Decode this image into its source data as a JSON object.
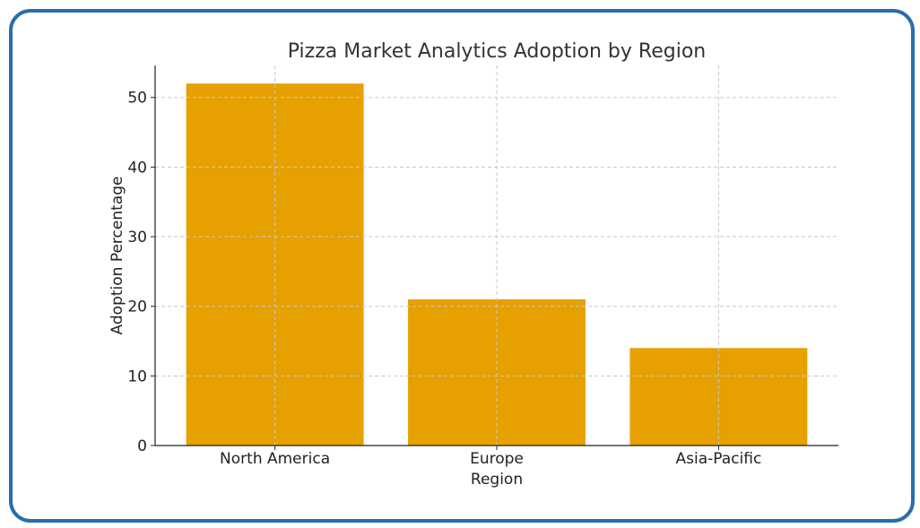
{
  "chart_data": {
    "type": "bar",
    "title": "Pizza Market Analytics Adoption by Region",
    "xlabel": "Region",
    "ylabel": "Adoption Percentage",
    "categories": [
      "North America",
      "Europe",
      "Asia-Pacific"
    ],
    "values": [
      52,
      21,
      14
    ],
    "ylim": [
      0,
      54.6
    ],
    "yticks": [
      0,
      10,
      20,
      30,
      40,
      50
    ],
    "grid": true,
    "bar_color": "#e6a000",
    "border_color": "#2a6cad"
  }
}
